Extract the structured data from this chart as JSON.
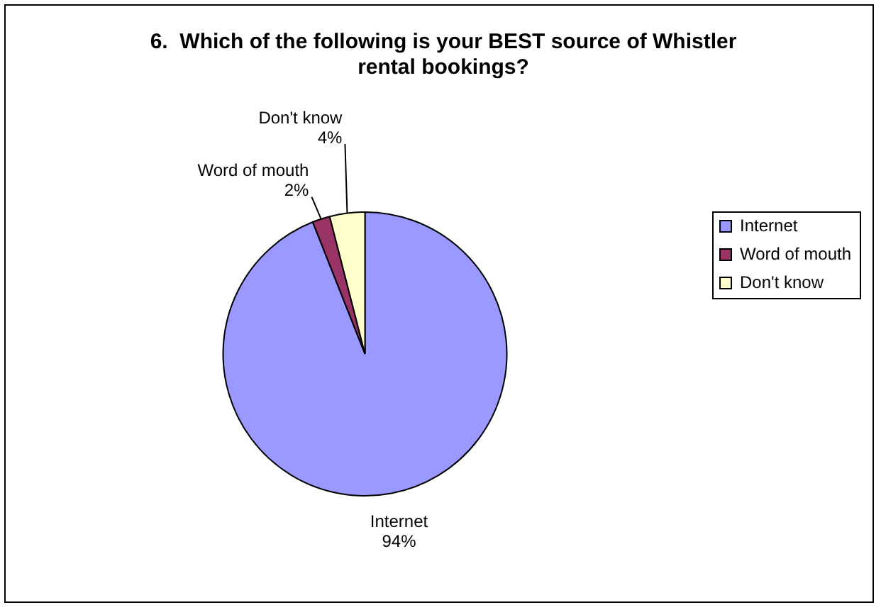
{
  "chart_data": {
    "type": "pie",
    "title": "6.  Which of the following is your BEST source of Whistler rental bookings?",
    "categories": [
      "Internet",
      "Word of mouth",
      "Don't know"
    ],
    "values": [
      94,
      2,
      4
    ],
    "value_labels": [
      "94%",
      "2%",
      "4%"
    ],
    "colors": [
      "#9999ff",
      "#993366",
      "#ffffcc"
    ],
    "legend": "right"
  }
}
